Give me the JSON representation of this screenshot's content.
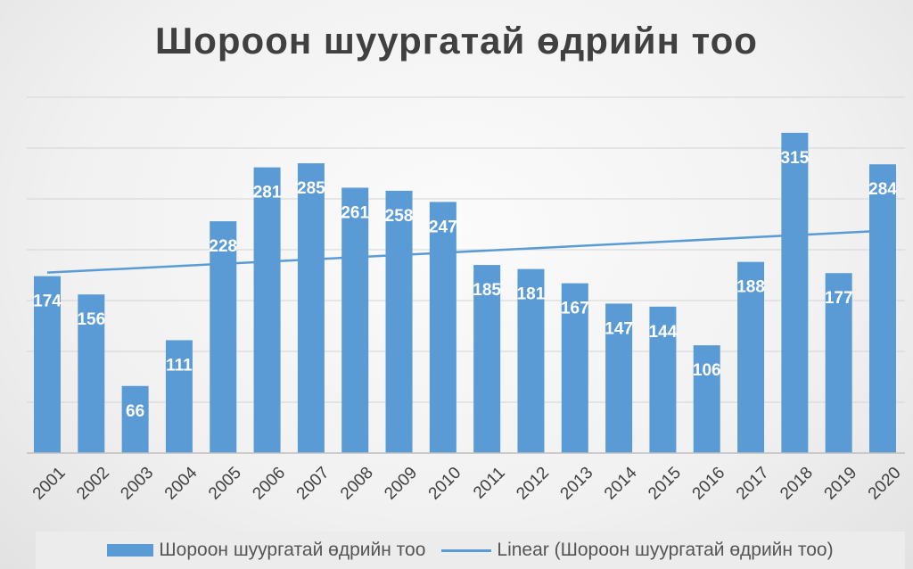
{
  "chart_data": {
    "type": "bar",
    "title": "Шороон шуургатай өдрийн тоо",
    "categories": [
      "2001",
      "2002",
      "2003",
      "2004",
      "2005",
      "2006",
      "2007",
      "2008",
      "2009",
      "2010",
      "2011",
      "2012",
      "2013",
      "2014",
      "2015",
      "2016",
      "2017",
      "2018",
      "2019",
      "2020"
    ],
    "series": [
      {
        "name": "Шороон шуургатай өдрийн тоо",
        "values": [
          174,
          156,
          66,
          111,
          228,
          281,
          285,
          261,
          258,
          247,
          185,
          181,
          167,
          147,
          144,
          106,
          188,
          315,
          177,
          284
        ]
      }
    ],
    "trendline": {
      "name": "Linear (Шороон шуургатай өдрийн тоо)",
      "type": "linear"
    },
    "ylim": [
      0,
      350
    ],
    "ygrid_step": 50,
    "grid": true,
    "legend": "bottom",
    "xlabel": "",
    "ylabel": "",
    "colors": {
      "bar": "#5b9bd5",
      "trend": "#5b9bd5",
      "label": "#ffffff"
    }
  }
}
